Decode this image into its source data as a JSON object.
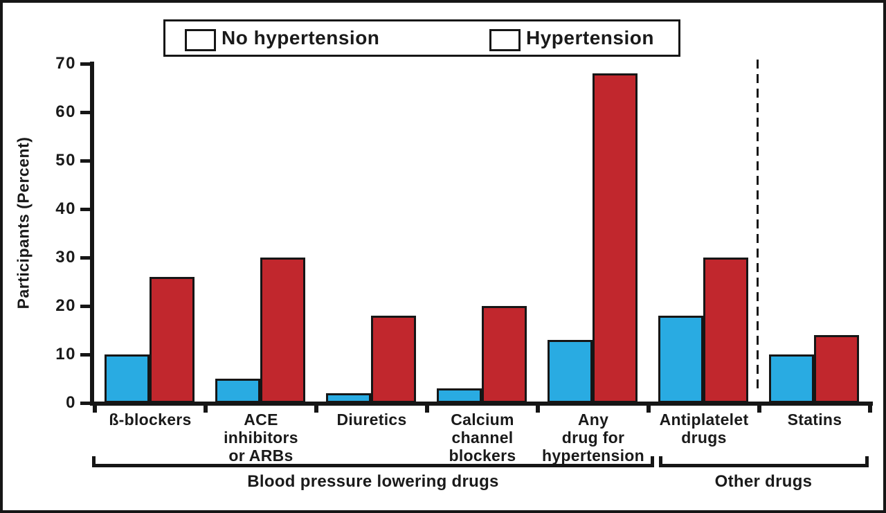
{
  "colors": {
    "no_hypertension_bar": "#29ABE2",
    "no_hypertension_legend": "#1C75BC",
    "hypertension": "#C1272D",
    "axis": "#161616",
    "background": "#FFFFFF"
  },
  "legend": {
    "items": [
      {
        "label": "No hypertension",
        "color": "#1C75BC"
      },
      {
        "label": "Hypertension",
        "color": "#C1272D"
      }
    ]
  },
  "chart_data": {
    "type": "bar",
    "title": "",
    "ylabel": "Participants (Percent)",
    "xlabel": "",
    "ylim": [
      0,
      70
    ],
    "yticks": [
      0,
      10,
      20,
      30,
      40,
      50,
      60,
      70
    ],
    "grid": false,
    "legend_position": "top",
    "categories": [
      [
        "ß-blockers"
      ],
      [
        "ACE",
        "inhibitors",
        "or ARBs"
      ],
      [
        "Diuretics"
      ],
      [
        "Calcium",
        "channel",
        "blockers"
      ],
      [
        "Any",
        "drug for",
        "hypertension"
      ],
      [
        "Antiplatelet",
        "drugs"
      ],
      [
        "Statins"
      ]
    ],
    "series": [
      {
        "name": "No hypertension",
        "color": "#29ABE2",
        "values": [
          10,
          5,
          2,
          3,
          13,
          18,
          10
        ]
      },
      {
        "name": "Hypertension",
        "color": "#C1272D",
        "values": [
          26,
          30,
          18,
          20,
          68,
          30,
          14
        ]
      }
    ],
    "group_brackets": [
      {
        "label": "Blood pressure lowering drugs",
        "from_category": 0,
        "to_category": 4
      },
      {
        "label": "Other drugs",
        "from_category": 5,
        "to_category": 6
      }
    ],
    "divider_between_categories": [
      "Antiplatelet drugs",
      "Statins"
    ]
  }
}
